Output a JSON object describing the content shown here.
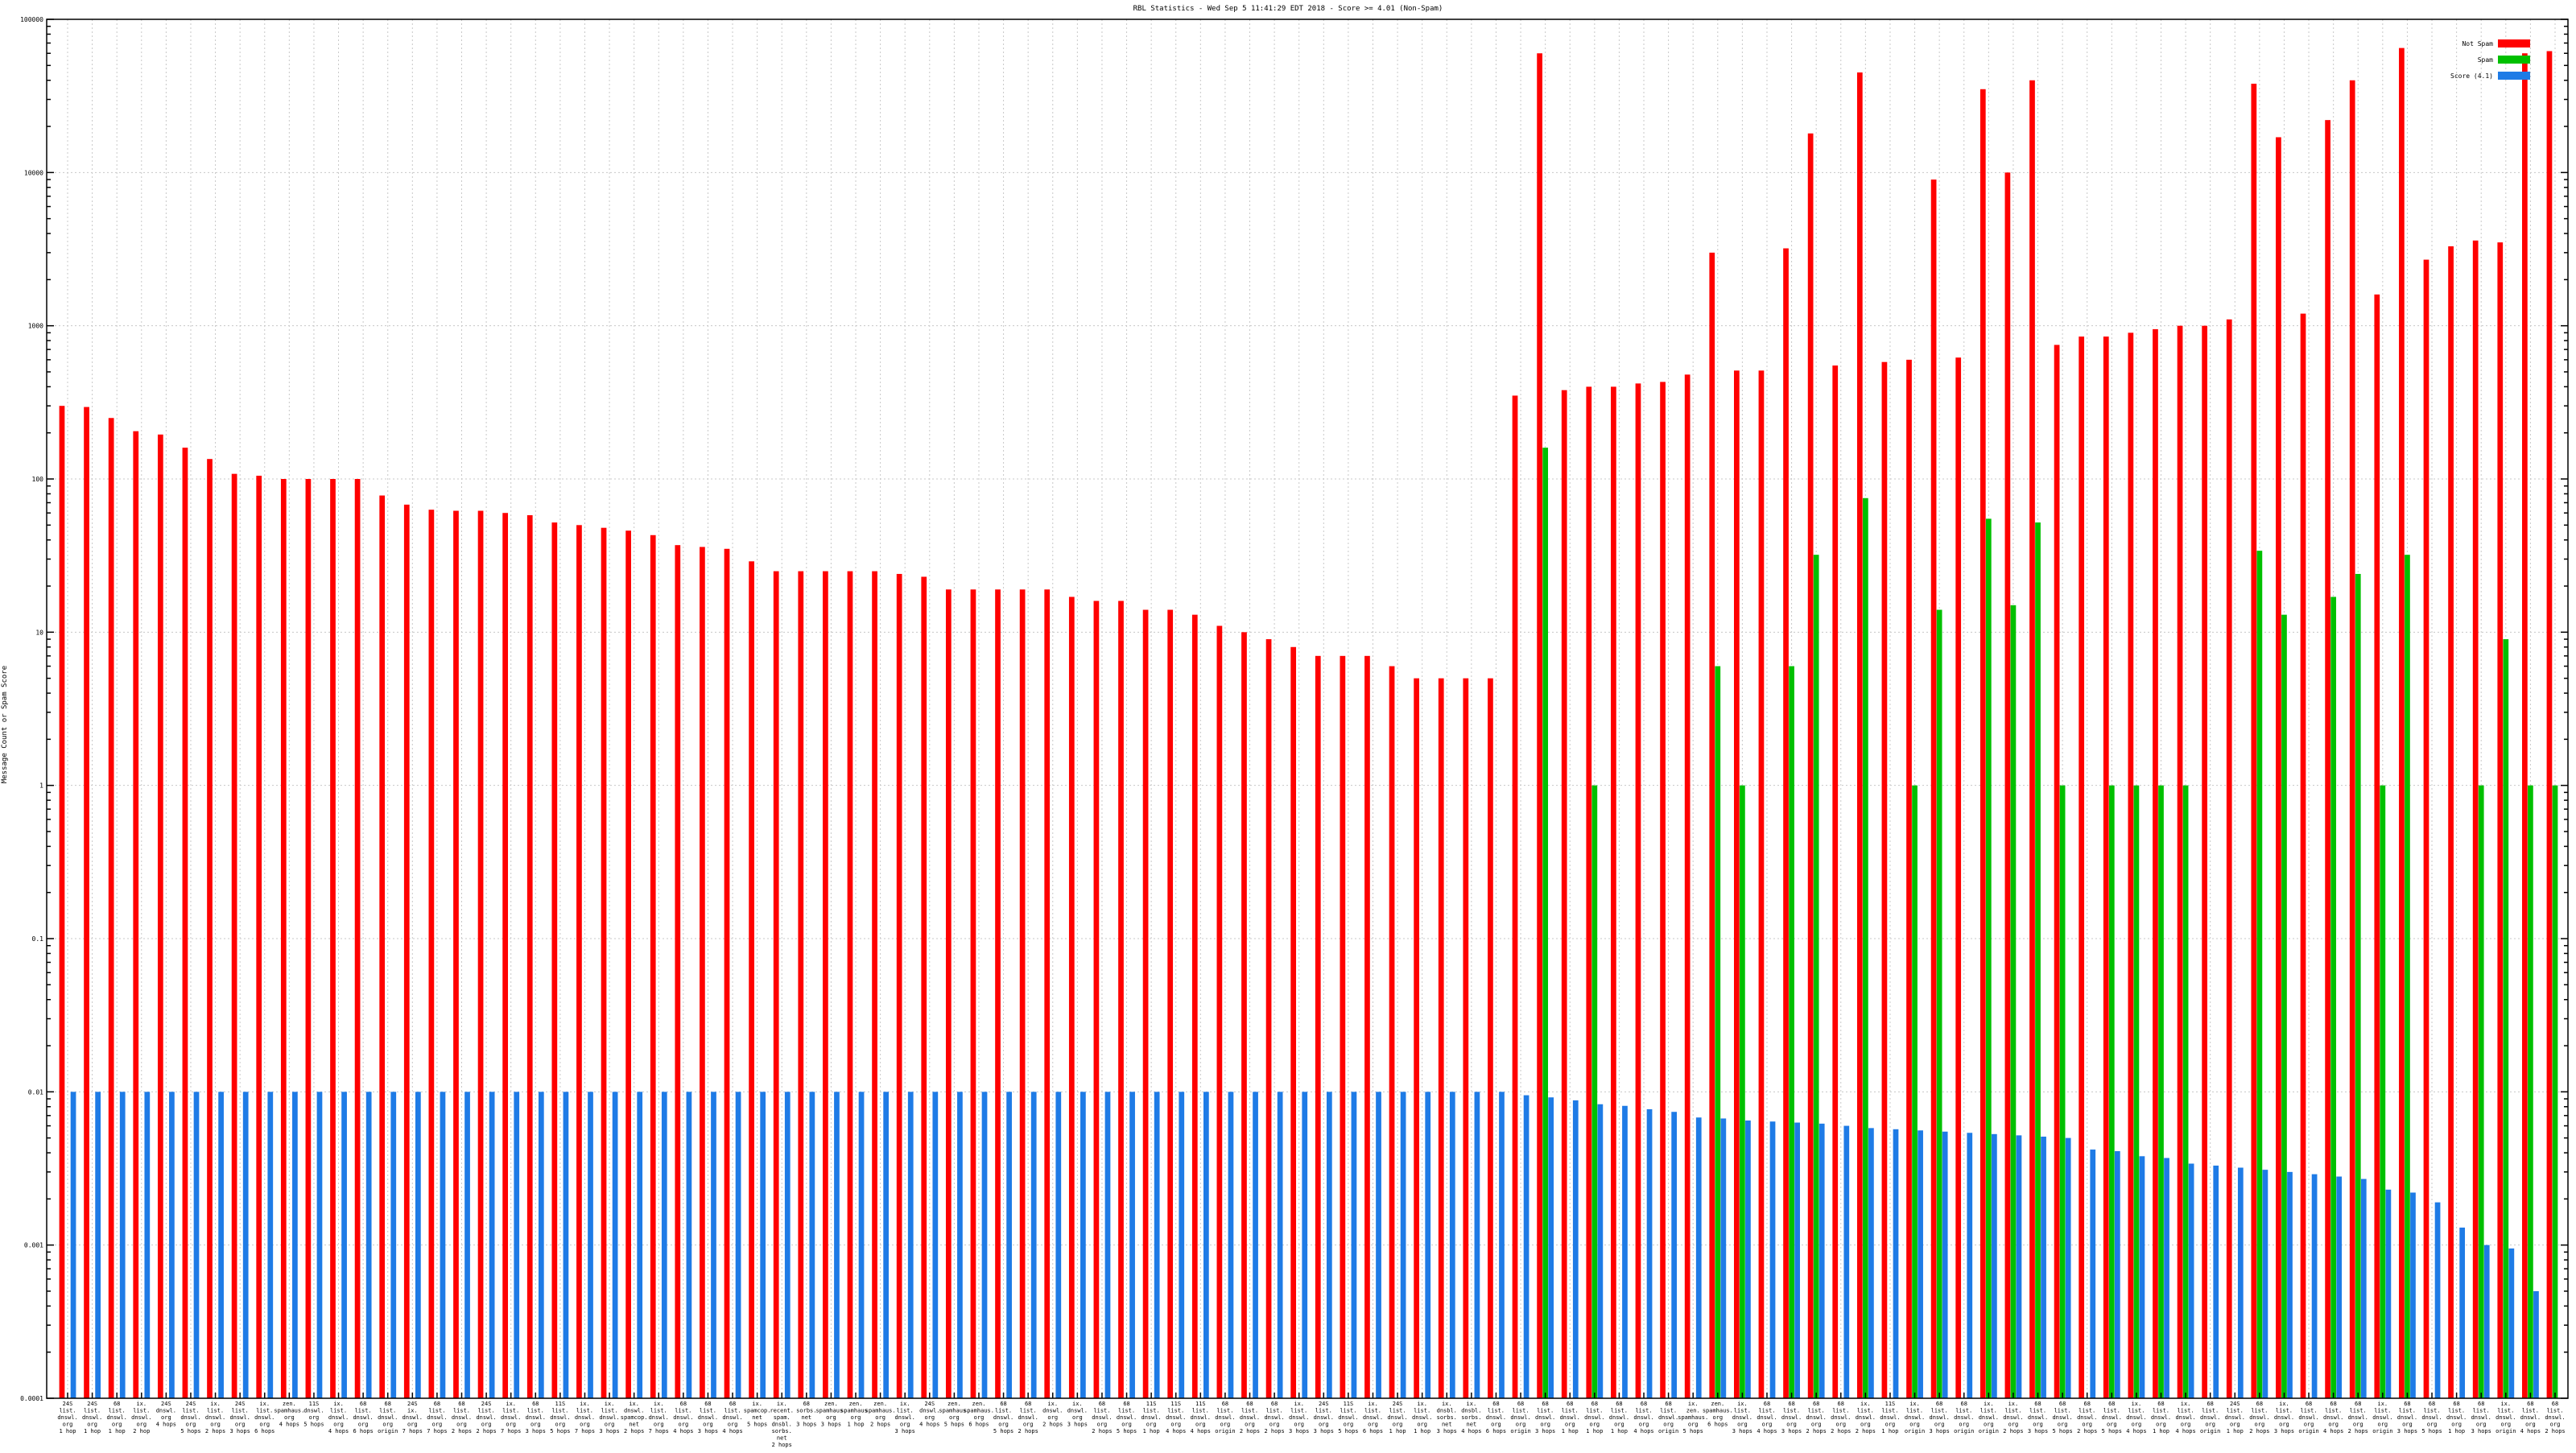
{
  "chart_data": {
    "type": "bar",
    "title": "RBL Statistics - Wed Sep  5 11:41:29 EDT 2018 - Score >= 4.01 (Non-Spam)",
    "ylabel": "Message Count or Spam Score",
    "xlabel": "",
    "scale": "log",
    "ylim": [
      0.0001,
      100000
    ],
    "ytick_values": [
      0.0001,
      0.001,
      0.01,
      0.1,
      1,
      10,
      100,
      1000,
      10000,
      100000
    ],
    "ytick_labels": [
      "0.0001",
      "0.001",
      "0.01",
      "0.1",
      "1",
      "10",
      "100",
      "1000",
      "10000",
      "100000"
    ],
    "grid": true,
    "legend_position": "top-right",
    "colors": {
      "not_spam": "#ff0000",
      "spam": "#00c000",
      "score": "#1e7be6"
    },
    "categories": [
      [
        "24S",
        "list.",
        "dnswl.",
        "org",
        "1 hop"
      ],
      [
        "24S",
        "list.",
        "dnswl.",
        "org",
        "1 hop"
      ],
      [
        "68",
        "list.",
        "dnswl.",
        "org",
        "1 hop"
      ],
      [
        "ix.",
        "list.",
        "dnswl.",
        "org",
        "2 hop"
      ],
      [
        "24S",
        "dnswl.",
        "org",
        "4 hops"
      ],
      [
        "24S",
        "list.",
        "dnswl.",
        "org",
        "5 hops"
      ],
      [
        "ix.",
        "list.",
        "dnswl.",
        "org",
        "2 hops"
      ],
      [
        "24S",
        "list.",
        "dnswl.",
        "org",
        "3 hops"
      ],
      [
        "ix.",
        "list.",
        "dnswl.",
        "org",
        "6 hops"
      ],
      [
        "zen.",
        "spamhaus.",
        "org",
        "4 hops"
      ],
      [
        "11S",
        "dnswl.",
        "org",
        "5 hops"
      ],
      [
        "ix.",
        "list.",
        "dnswl.",
        "org",
        "4 hops"
      ],
      [
        "68",
        "list.",
        "dnswl.",
        "org",
        "6 hops"
      ],
      [
        "68",
        "list.",
        "dnswl.",
        "org",
        "origin"
      ],
      [
        "24S",
        "ix.",
        "dnswl.",
        "org",
        "7 hops"
      ],
      [
        "68",
        "list.",
        "dnswl.",
        "org",
        "7 hops"
      ],
      [
        "68",
        "list.",
        "dnswl.",
        "org",
        "2 hops"
      ],
      [
        "24S",
        "list.",
        "dnswl.",
        "org",
        "2 hops"
      ],
      [
        "ix.",
        "list.",
        "dnswl.",
        "org",
        "7 hops"
      ],
      [
        "68",
        "list.",
        "dnswl.",
        "org",
        "3 hops"
      ],
      [
        "11S",
        "list.",
        "dnswl.",
        "org",
        "5 hops"
      ],
      [
        "ix.",
        "list.",
        "dnswl.",
        "org",
        "7 hops"
      ],
      [
        "ix.",
        "list.",
        "dnswl.",
        "org",
        "3 hops"
      ],
      [
        "ix.",
        "dnswl.",
        "spamcop.",
        "net",
        "2 hops"
      ],
      [
        "ix.",
        "list.",
        "dnswl.",
        "org",
        "7 hops"
      ],
      [
        "68",
        "list.",
        "dnswl.",
        "org",
        "4 hops"
      ],
      [
        "68",
        "list.",
        "dnswl.",
        "org",
        "3 hops"
      ],
      [
        "68",
        "list.",
        "dnswl.",
        "org",
        "4 hops"
      ],
      [
        "ix.",
        "spamcop.",
        "net",
        "5 hops"
      ],
      [
        "ix.",
        "recent.",
        "spam.",
        "dnsbl.",
        "sorbs.",
        "net",
        "2 hops"
      ],
      [
        "68",
        "sorbs.",
        "net",
        "3 hops"
      ],
      [
        "zen.",
        "spamhaus.",
        "org",
        "3 hops"
      ],
      [
        "zen.",
        "spamhaus.",
        "org",
        "1 hop"
      ],
      [
        "zen.",
        "spamhaus.",
        "org",
        "2 hops"
      ],
      [
        "ix.",
        "list.",
        "dnswl.",
        "org",
        "3 hops"
      ],
      [
        "24S",
        "dnswl.",
        "org",
        "4 hops"
      ],
      [
        "zen.",
        "spamhaus.",
        "org",
        "5 hops"
      ],
      [
        "zen.",
        "spamhaus.",
        "org",
        "6 hops"
      ],
      [
        "68",
        "list.",
        "dnswl.",
        "org",
        "5 hops"
      ],
      [
        "68",
        "list.",
        "dnswl.",
        "org",
        "2 hops"
      ],
      [
        "ix.",
        "dnswl.",
        "org",
        "2 hops"
      ],
      [
        "ix.",
        "dnswl.",
        "org",
        "3 hops"
      ],
      [
        "68",
        "list.",
        "dnswl.",
        "org",
        "2 hops"
      ],
      [
        "68",
        "list.",
        "dnswl.",
        "org",
        "5 hops"
      ],
      [
        "11S",
        "list.",
        "dnswl.",
        "org",
        "1 hop"
      ],
      [
        "11S",
        "list.",
        "dnswl.",
        "org",
        "4 hops"
      ],
      [
        "11S",
        "list.",
        "dnswl.",
        "org",
        "4 hops"
      ],
      [
        "68",
        "list.",
        "dnswl.",
        "org",
        "origin"
      ],
      [
        "68",
        "list.",
        "dnswl.",
        "org",
        "2 hops"
      ],
      [
        "68",
        "list.",
        "dnswl.",
        "org",
        "2 hops"
      ],
      [
        "ix.",
        "list.",
        "dnswl.",
        "org",
        "3 hops"
      ],
      [
        "24S",
        "list.",
        "dnswl.",
        "org",
        "3 hops"
      ],
      [
        "11S",
        "list.",
        "dnswl.",
        "org",
        "5 hops"
      ],
      [
        "ix.",
        "list.",
        "dnswl.",
        "org",
        "6 hops"
      ],
      [
        "24S",
        "list.",
        "dnswl.",
        "org",
        "1 hop"
      ],
      [
        "ix.",
        "list.",
        "dnswl.",
        "org",
        "1 hop"
      ],
      [
        "ix.",
        "dnsbl.",
        "sorbs.",
        "net",
        "3 hops"
      ],
      [
        "ix.",
        "dnsbl.",
        "sorbs.",
        "net",
        "4 hops"
      ],
      [
        "68",
        "list.",
        "dnswl.",
        "org",
        "6 hops"
      ],
      [
        "68",
        "list.",
        "dnswl.",
        "org",
        "origin"
      ],
      [
        "68",
        "list.",
        "dnswl.",
        "org",
        "3 hops"
      ],
      [
        "68",
        "list.",
        "dnswl.",
        "org",
        "1 hop"
      ],
      [
        "68",
        "list.",
        "dnswl.",
        "org",
        "1 hop"
      ],
      [
        "68",
        "list.",
        "dnswl.",
        "org",
        "1 hop"
      ],
      [
        "68",
        "list.",
        "dnswl.",
        "org",
        "4 hops"
      ],
      [
        "68",
        "list.",
        "dnswl.",
        "org",
        "origin"
      ],
      [
        "ix.",
        "zen.",
        "spamhaus.",
        "org",
        "5 hops"
      ],
      [
        "zen.",
        "spamhaus.",
        "org",
        "6 hops"
      ],
      [
        "ix.",
        "list.",
        "dnswl.",
        "org",
        "3 hops"
      ],
      [
        "68",
        "list.",
        "dnswl.",
        "org",
        "4 hops"
      ],
      [
        "68",
        "list.",
        "dnswl.",
        "org",
        "3 hops"
      ],
      [
        "68",
        "list.",
        "dnswl.",
        "org",
        "2 hops"
      ],
      [
        "68",
        "list.",
        "dnswl.",
        "org",
        "2 hops"
      ],
      [
        "ix.",
        "list.",
        "dnswl.",
        "org",
        "2 hops"
      ],
      [
        "11S",
        "list.",
        "dnswl.",
        "org",
        "1 hop"
      ],
      [
        "ix.",
        "list.",
        "dnswl.",
        "org",
        "origin"
      ],
      [
        "68",
        "list.",
        "dnswl.",
        "org",
        "3 hops"
      ],
      [
        "68",
        "list.",
        "dnswl.",
        "org",
        "origin"
      ],
      [
        "ix.",
        "list.",
        "dnswl.",
        "org",
        "origin"
      ],
      [
        "ix.",
        "list.",
        "dnswl.",
        "org",
        "2 hops"
      ],
      [
        "68",
        "list.",
        "dnswl.",
        "org",
        "3 hops"
      ],
      [
        "68",
        "list.",
        "dnswl.",
        "org",
        "5 hops"
      ],
      [
        "68",
        "list.",
        "dnswl.",
        "org",
        "2 hops"
      ],
      [
        "68",
        "list.",
        "dnswl.",
        "org",
        "5 hops"
      ],
      [
        "ix.",
        "list.",
        "dnswl.",
        "org",
        "4 hops"
      ],
      [
        "68",
        "list.",
        "dnswl.",
        "org",
        "1 hop"
      ],
      [
        "ix.",
        "list.",
        "dnswl.",
        "org",
        "4 hops"
      ],
      [
        "68",
        "list.",
        "dnswl.",
        "org",
        "origin"
      ],
      [
        "24S",
        "list.",
        "dnswl.",
        "org",
        "1 hop"
      ],
      [
        "68",
        "list.",
        "dnswl.",
        "org",
        "2 hops"
      ],
      [
        "ix.",
        "list.",
        "dnswl.",
        "org",
        "3 hops"
      ],
      [
        "68",
        "list.",
        "dnswl.",
        "org",
        "origin"
      ],
      [
        "68",
        "list.",
        "dnswl.",
        "org",
        "4 hops"
      ],
      [
        "68",
        "list.",
        "dnswl.",
        "org",
        "2 hops"
      ],
      [
        "ix.",
        "list.",
        "dnswl.",
        "org",
        "origin"
      ],
      [
        "68",
        "list.",
        "dnswl.",
        "org",
        "3 hops"
      ],
      [
        "68",
        "list.",
        "dnswl.",
        "org",
        "5 hops"
      ],
      [
        "68",
        "list.",
        "dnswl.",
        "org",
        "1 hop"
      ],
      [
        "68",
        "list.",
        "dnswl.",
        "org",
        "3 hops"
      ],
      [
        "ix.",
        "list.",
        "dnswl.",
        "org",
        "origin"
      ],
      [
        "68",
        "list.",
        "dnswl.",
        "org",
        "4 hops"
      ],
      [
        "68",
        "list.",
        "dnswl.",
        "org",
        "2 hops"
      ]
    ],
    "series": [
      {
        "name": "Not Spam",
        "values": [
          300,
          295,
          250,
          205,
          195,
          160,
          135,
          108,
          105,
          100,
          100,
          100,
          100,
          78,
          68,
          63,
          62,
          62,
          60,
          58,
          52,
          50,
          48,
          46,
          43,
          37,
          36,
          35,
          29,
          25,
          25,
          25,
          25,
          25,
          24,
          23,
          19,
          19,
          19,
          19,
          19,
          17,
          16,
          16,
          14,
          14,
          13,
          11,
          10,
          9,
          8,
          7,
          7,
          7,
          6,
          5,
          5,
          5,
          5,
          350,
          60000,
          380,
          400,
          400,
          420,
          430,
          480,
          3000,
          510,
          510,
          3200,
          18000,
          550,
          45000,
          580,
          600,
          9000,
          620,
          35000,
          10000,
          40000,
          750,
          850,
          850,
          900,
          950,
          1000,
          1000,
          1100,
          38000,
          17000,
          1200,
          22000,
          40000,
          1600,
          65000,
          2700,
          3300,
          3600,
          3500,
          60000,
          62000
        ],
        "color": "#ff0000"
      },
      {
        "name": "Spam",
        "values": [
          null,
          null,
          null,
          null,
          null,
          null,
          null,
          null,
          null,
          null,
          null,
          null,
          null,
          null,
          null,
          null,
          null,
          null,
          null,
          null,
          null,
          null,
          null,
          null,
          null,
          null,
          null,
          null,
          null,
          null,
          null,
          null,
          null,
          null,
          null,
          null,
          null,
          null,
          null,
          null,
          null,
          null,
          null,
          null,
          null,
          null,
          null,
          null,
          null,
          null,
          null,
          null,
          null,
          null,
          null,
          null,
          null,
          null,
          null,
          null,
          160,
          null,
          1,
          null,
          null,
          null,
          null,
          6,
          1,
          null,
          6,
          32,
          null,
          75,
          null,
          1,
          14,
          null,
          55,
          15,
          52,
          1,
          null,
          1,
          1,
          1,
          1,
          null,
          null,
          34,
          13,
          null,
          17,
          24,
          1,
          32,
          null,
          null,
          1,
          9,
          1,
          1
        ],
        "color": "#00c000"
      },
      {
        "name": "Score (4.1)",
        "values": [
          0.01,
          0.01,
          0.01,
          0.01,
          0.01,
          0.01,
          0.01,
          0.01,
          0.01,
          0.01,
          0.01,
          0.01,
          0.01,
          0.01,
          0.01,
          0.01,
          0.01,
          0.01,
          0.01,
          0.01,
          0.01,
          0.01,
          0.01,
          0.01,
          0.01,
          0.01,
          0.01,
          0.01,
          0.01,
          0.01,
          0.01,
          0.01,
          0.01,
          0.01,
          0.01,
          0.01,
          0.01,
          0.01,
          0.01,
          0.01,
          0.01,
          0.01,
          0.01,
          0.01,
          0.01,
          0.01,
          0.01,
          0.01,
          0.01,
          0.01,
          0.01,
          0.01,
          0.01,
          0.01,
          0.01,
          0.01,
          0.01,
          0.01,
          0.01,
          0.0095,
          0.0092,
          0.0088,
          0.0083,
          0.0081,
          0.0077,
          0.0074,
          0.0068,
          0.0067,
          0.0065,
          0.0064,
          0.0063,
          0.0062,
          0.006,
          0.0058,
          0.0057,
          0.0056,
          0.0055,
          0.0054,
          0.0053,
          0.0052,
          0.0051,
          0.005,
          0.0042,
          0.0041,
          0.0038,
          0.0037,
          0.0034,
          0.0033,
          0.0032,
          0.0031,
          0.003,
          0.0029,
          0.0028,
          0.0027,
          0.0023,
          0.0022,
          0.0019,
          0.0013,
          0.001,
          0.00095,
          0.0005,
          0.0001
        ],
        "color": "#1e7be6"
      }
    ]
  }
}
